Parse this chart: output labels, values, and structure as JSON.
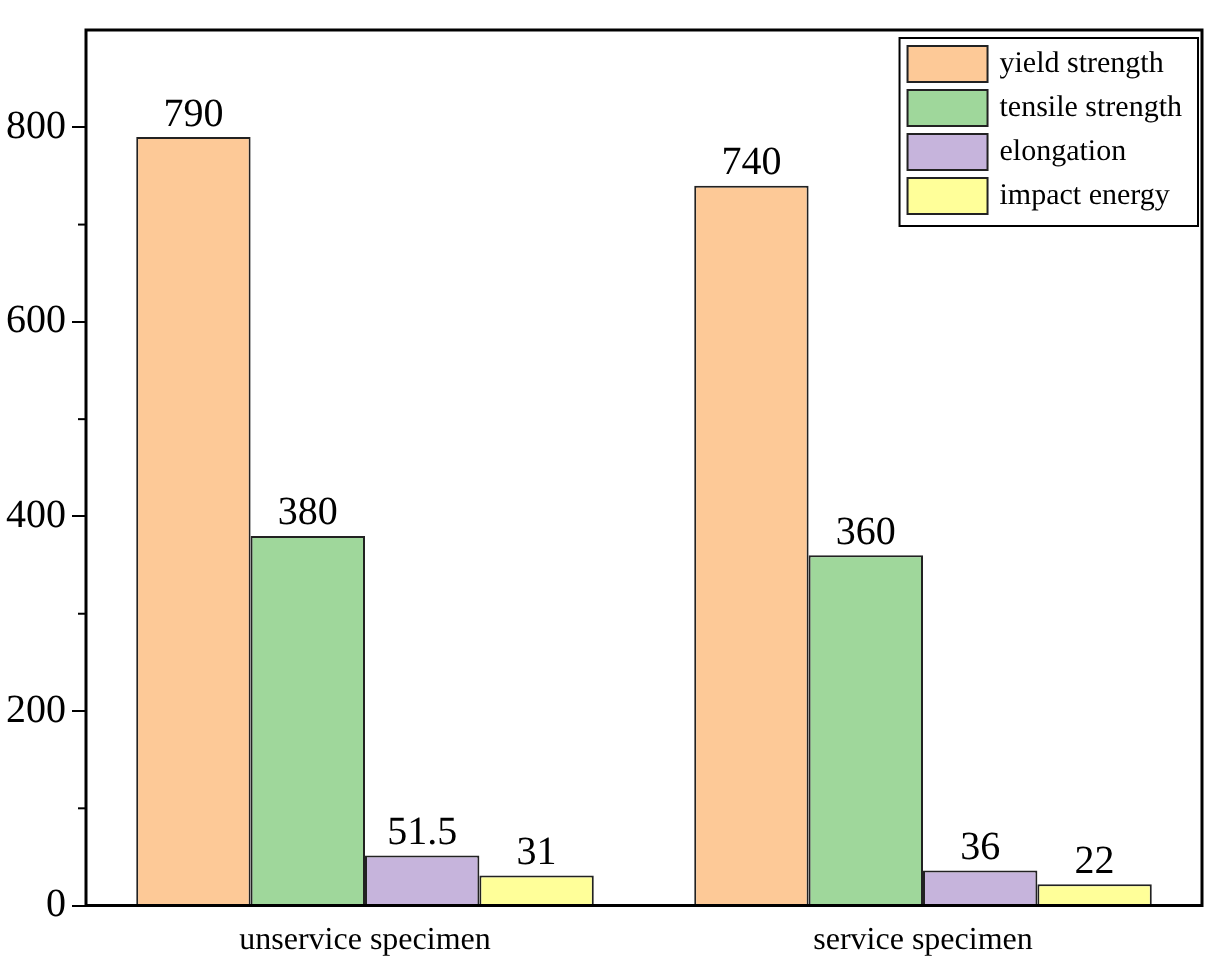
{
  "chart_data": {
    "type": "bar",
    "categories": [
      "unservice specimen",
      "service specimen"
    ],
    "series": [
      {
        "name": "yield strength",
        "color": "#fdc997",
        "values": [
          790,
          740
        ]
      },
      {
        "name": "tensile strength",
        "color": "#9fd79b",
        "values": [
          380,
          360
        ]
      },
      {
        "name": "elongation",
        "color": "#c6b4dc",
        "values": [
          51.5,
          36
        ]
      },
      {
        "name": "impact energy",
        "color": "#ffff99",
        "values": [
          31,
          22
        ]
      }
    ],
    "ylim": [
      0,
      900
    ],
    "yticks": [
      0,
      200,
      400,
      600,
      800
    ],
    "grid": false,
    "legend": "top right",
    "data_labels": true
  }
}
